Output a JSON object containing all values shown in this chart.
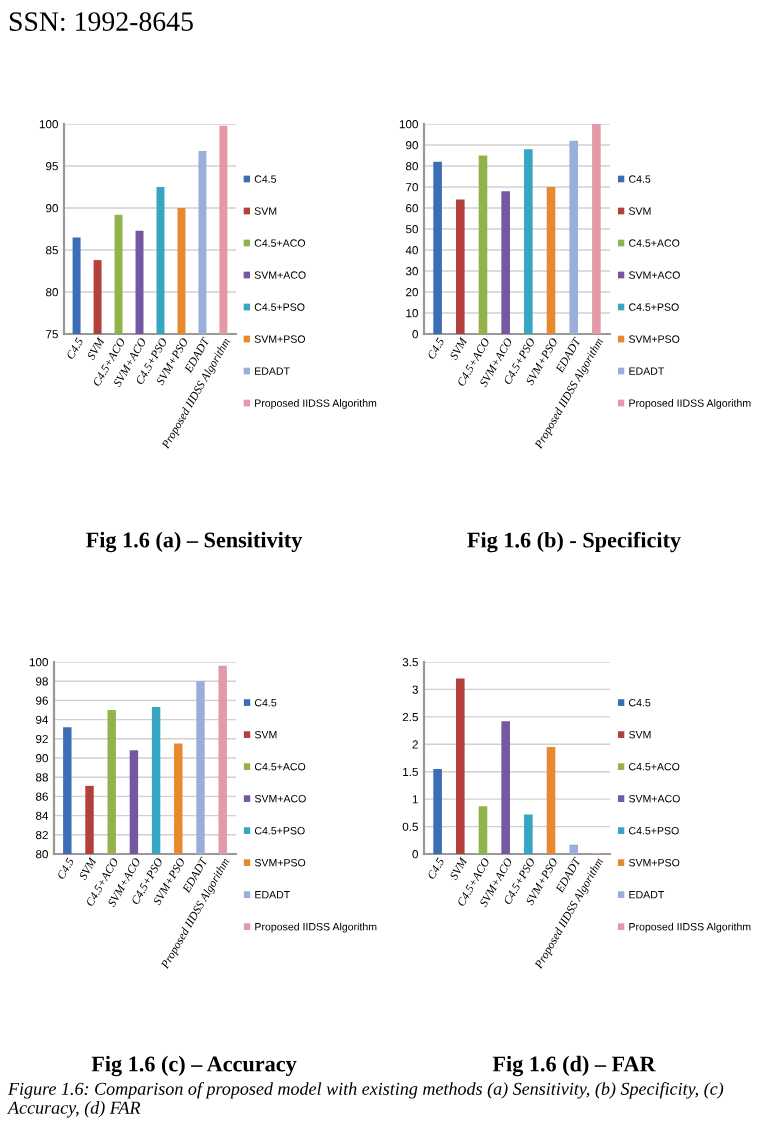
{
  "chart_data": [
    {
      "type": "bar",
      "title": "Fig 1.6 (a) – Sensitivity",
      "categories": [
        "C4.5",
        "SVM",
        "C4.5+ACO",
        "SVM+ACO",
        "C4.5+PSO",
        "SVM+PSO",
        "EDADT",
        "Proposed IIDSS Algorithm"
      ],
      "stacked": true,
      "series": [
        {
          "name": "C4.5",
          "color": "#3d6db5",
          "values": [
            86.5,
            null,
            null,
            null,
            null,
            null,
            null,
            null
          ]
        },
        {
          "name": "SVM",
          "color": "#b3403c",
          "values": [
            null,
            83.8,
            null,
            null,
            null,
            null,
            null,
            null
          ]
        },
        {
          "name": "C4.5+ACO",
          "color": "#92b34a",
          "values": [
            null,
            null,
            89.2,
            null,
            null,
            null,
            null,
            null
          ]
        },
        {
          "name": "SVM+ACO",
          "color": "#7458a2",
          "values": [
            null,
            null,
            null,
            87.3,
            null,
            null,
            null,
            null
          ]
        },
        {
          "name": "C4.5+PSO",
          "color": "#37a6c2",
          "values": [
            null,
            null,
            null,
            null,
            92.5,
            null,
            null,
            null
          ]
        },
        {
          "name": "SVM+PSO",
          "color": "#e8892f",
          "values": [
            null,
            null,
            null,
            null,
            null,
            90,
            null,
            null
          ]
        },
        {
          "name": "EDADT",
          "color": "#9aaedb",
          "values": [
            null,
            null,
            null,
            null,
            null,
            null,
            96.8,
            null
          ]
        },
        {
          "name": "Proposed IIDSS Algorithm",
          "color": "#e39aa6",
          "values": [
            null,
            null,
            null,
            null,
            null,
            null,
            null,
            99.8
          ]
        }
      ],
      "ylim": [
        75,
        100
      ],
      "yticks": [
        75,
        80,
        85,
        90,
        95,
        100
      ],
      "grid": "y",
      "legend": "right",
      "annotations": [
        "SSN: 1992-8645"
      ]
    },
    {
      "type": "bar",
      "title": "Fig 1.6 (b) - Specificity",
      "categories": [
        "C4.5",
        "SVM",
        "C4.5+ACO",
        "SVM+ACO",
        "C4.5+PSO",
        "SVM+PSO",
        "EDADT",
        "Proposed IIDSS Algorithm"
      ],
      "stacked": true,
      "series": [
        {
          "name": "C4.5",
          "color": "#3d6db5",
          "values": [
            82,
            null,
            null,
            null,
            null,
            null,
            null,
            null
          ]
        },
        {
          "name": "SVM",
          "color": "#b3403c",
          "values": [
            null,
            64,
            null,
            null,
            null,
            null,
            null,
            null
          ]
        },
        {
          "name": "C4.5+ACO",
          "color": "#92b34a",
          "values": [
            null,
            null,
            85,
            null,
            null,
            null,
            null,
            null
          ]
        },
        {
          "name": "SVM+ACO",
          "color": "#7458a2",
          "values": [
            null,
            null,
            null,
            68,
            null,
            null,
            null,
            null
          ]
        },
        {
          "name": "C4.5+PSO",
          "color": "#37a6c2",
          "values": [
            null,
            null,
            null,
            null,
            88,
            null,
            null,
            null
          ]
        },
        {
          "name": "SVM+PSO",
          "color": "#e8892f",
          "values": [
            null,
            null,
            null,
            null,
            null,
            70,
            null,
            null
          ]
        },
        {
          "name": "EDADT",
          "color": "#9aaedb",
          "values": [
            null,
            null,
            null,
            null,
            null,
            null,
            92,
            null
          ]
        },
        {
          "name": "Proposed IIDSS Algorithm",
          "color": "#e39aa6",
          "values": [
            null,
            null,
            null,
            null,
            null,
            null,
            null,
            100
          ]
        }
      ],
      "ylim": [
        0,
        100
      ],
      "yticks": [
        0,
        10,
        20,
        30,
        40,
        50,
        60,
        70,
        80,
        90,
        100
      ],
      "grid": "y",
      "legend": "right"
    },
    {
      "type": "bar",
      "title": "Fig 1.6 (c) – Accuracy",
      "categories": [
        "C4.5",
        "SVM",
        "C4.5+ACO",
        "SVM+ACO",
        "C4.5+PSO",
        "SVM+PSO",
        "EDADT",
        "Proposed IIDSS Algorithm"
      ],
      "stacked": true,
      "series": [
        {
          "name": "C4.5",
          "color": "#3d6db5",
          "values": [
            93.2,
            null,
            null,
            null,
            null,
            null,
            null,
            null
          ]
        },
        {
          "name": "SVM",
          "color": "#b3403c",
          "values": [
            null,
            87.1,
            null,
            null,
            null,
            null,
            null,
            null
          ]
        },
        {
          "name": "C4.5+ACO",
          "color": "#92b34a",
          "values": [
            null,
            null,
            95,
            null,
            null,
            null,
            null,
            null
          ]
        },
        {
          "name": "SVM+ACO",
          "color": "#7458a2",
          "values": [
            null,
            null,
            null,
            90.8,
            null,
            null,
            null,
            null
          ]
        },
        {
          "name": "C4.5+PSO",
          "color": "#37a6c2",
          "values": [
            null,
            null,
            null,
            null,
            95.3,
            null,
            null,
            null
          ]
        },
        {
          "name": "SVM+PSO",
          "color": "#e8892f",
          "values": [
            null,
            null,
            null,
            null,
            null,
            91.5,
            null,
            null
          ]
        },
        {
          "name": "EDADT",
          "color": "#9aaedb",
          "values": [
            null,
            null,
            null,
            null,
            null,
            null,
            98,
            null
          ]
        },
        {
          "name": "Proposed IIDSS Algorithm",
          "color": "#e39aa6",
          "values": [
            null,
            null,
            null,
            null,
            null,
            null,
            null,
            99.6
          ]
        }
      ],
      "ylim": [
        80,
        100
      ],
      "yticks": [
        80,
        82,
        84,
        86,
        88,
        90,
        92,
        94,
        96,
        98,
        100
      ],
      "grid": "y",
      "legend": "right",
      "annotations": [
        "Figure 1.6: Comparison of proposed model with existing methods (a) Sensitivity, (b) Specificity, (c) Accuracy, (d) FAR"
      ]
    },
    {
      "type": "bar",
      "title": "Fig 1.6 (d) – FAR",
      "categories": [
        "C4.5",
        "SVM",
        "C4.5+ACO",
        "SVM+ACO",
        "C4.5+PSO",
        "SVM+PSO",
        "EDADT",
        "Proposed IIDSS Algorithm"
      ],
      "stacked": true,
      "series": [
        {
          "name": "C4.5",
          "color": "#3d6db5",
          "values": [
            1.55,
            null,
            null,
            null,
            null,
            null,
            null,
            null
          ]
        },
        {
          "name": "SVM",
          "color": "#b3403c",
          "values": [
            null,
            3.2,
            null,
            null,
            null,
            null,
            null,
            null
          ]
        },
        {
          "name": "C4.5+ACO",
          "color": "#92b34a",
          "values": [
            null,
            null,
            0.87,
            null,
            null,
            null,
            null,
            null
          ]
        },
        {
          "name": "SVM+ACO",
          "color": "#7458a2",
          "values": [
            null,
            null,
            null,
            2.42,
            null,
            null,
            null,
            null
          ]
        },
        {
          "name": "C4.5+PSO",
          "color": "#37a6c2",
          "values": [
            null,
            null,
            null,
            null,
            0.72,
            null,
            null,
            null
          ]
        },
        {
          "name": "SVM+PSO",
          "color": "#e8892f",
          "values": [
            null,
            null,
            null,
            null,
            null,
            1.95,
            null,
            null
          ]
        },
        {
          "name": "EDADT",
          "color": "#9aaedb",
          "values": [
            null,
            null,
            null,
            null,
            null,
            null,
            0.17,
            null
          ]
        },
        {
          "name": "Proposed IIDSS Algorithm",
          "color": "#e39aa6",
          "values": [
            null,
            null,
            null,
            null,
            null,
            null,
            null,
            0.02
          ]
        }
      ],
      "ylim": [
        0,
        3.5
      ],
      "yticks": [
        0,
        0.5,
        1,
        1.5,
        2,
        2.5,
        3,
        3.5
      ],
      "grid": "y",
      "legend": "right"
    }
  ]
}
